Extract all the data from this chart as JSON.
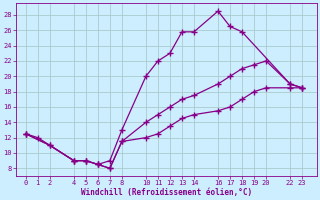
{
  "xlabel": "Windchill (Refroidissement éolien,°C)",
  "bg_color": "#cceeff",
  "grid_color": "#aacccc",
  "line_color": "#880088",
  "xticks": [
    0,
    1,
    2,
    4,
    5,
    6,
    7,
    8,
    10,
    11,
    12,
    13,
    14,
    16,
    17,
    18,
    19,
    20,
    22,
    23
  ],
  "yticks": [
    8,
    10,
    12,
    14,
    16,
    18,
    20,
    22,
    24,
    26,
    28
  ],
  "xlim": [
    -0.8,
    24.2
  ],
  "ylim": [
    7.0,
    29.5
  ],
  "line1_x": [
    0,
    1,
    4,
    5,
    6,
    7,
    8,
    10,
    11,
    12,
    13,
    14,
    16,
    17,
    18,
    22,
    23
  ],
  "line1_y": [
    12.5,
    12,
    9,
    9,
    8.5,
    9,
    13,
    20,
    22,
    23,
    25.8,
    25.8,
    28.5,
    26.5,
    25.8,
    19,
    18.5
  ],
  "line2_x": [
    0,
    2,
    4,
    5,
    6,
    7,
    8,
    10,
    11,
    12,
    13,
    14,
    16,
    17,
    18,
    19,
    20,
    22,
    23
  ],
  "line2_y": [
    12.5,
    11,
    9,
    9,
    8.5,
    8,
    11.5,
    14,
    15,
    16,
    17,
    17.5,
    19,
    20,
    21.0,
    21.5,
    22,
    19,
    18.5
  ],
  "line3_x": [
    0,
    2,
    4,
    5,
    6,
    7,
    8,
    10,
    11,
    12,
    13,
    14,
    16,
    17,
    18,
    19,
    20,
    22,
    23
  ],
  "line3_y": [
    12.5,
    11,
    9,
    9,
    8.5,
    8,
    11.5,
    12,
    12.5,
    13.5,
    14.5,
    15,
    15.5,
    16,
    17,
    18,
    18.5,
    18.5,
    18.5
  ]
}
